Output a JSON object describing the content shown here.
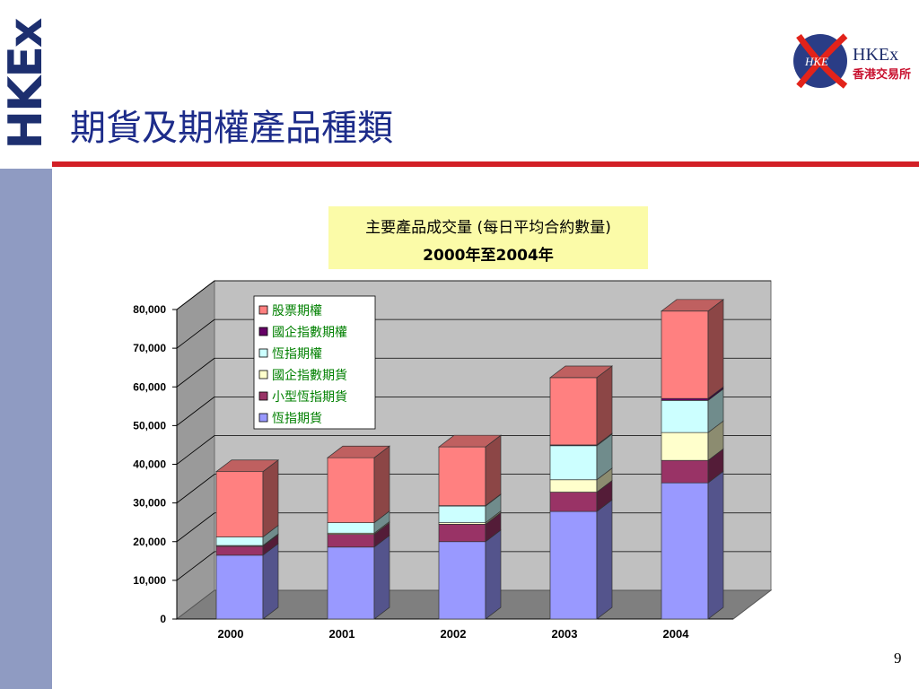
{
  "slide": {
    "title": "期貨及期權產品種類",
    "page_number": "9",
    "side_logo_text": "HKEx",
    "brand": {
      "emblem": "HKE",
      "name": "HKEx",
      "name_zh": "香港交易所"
    }
  },
  "colors": {
    "side_band": "#8f9bc2",
    "title_rule": "#d21f26",
    "title_text": "#1d2c8a",
    "legend_text": "#008000",
    "chart_title_bg": "#fbfba8",
    "plot_back": "#c0c0c0"
  },
  "chart_data": {
    "type": "bar",
    "stacked": true,
    "three_d": true,
    "title": "主要產品成交量 (每日平均合約數量)",
    "subtitle": "2000年至2004年",
    "categories": [
      "2000",
      "2001",
      "2002",
      "2003",
      "2004"
    ],
    "ylim": [
      0,
      80000
    ],
    "yticks": [
      "0",
      "10,000",
      "20,000",
      "30,000",
      "40,000",
      "50,000",
      "60,000",
      "70,000",
      "80,000"
    ],
    "grid": true,
    "legend_position": "top-left",
    "series": [
      {
        "name": "恆指期貨",
        "color": "#9999ff",
        "values": [
          16500,
          18600,
          20000,
          27800,
          35200
        ]
      },
      {
        "name": "小型恆指期貨",
        "color": "#993366",
        "values": [
          2300,
          3300,
          4500,
          5000,
          5800
        ]
      },
      {
        "name": "國企指數期貨",
        "color": "#ffffcc",
        "values": [
          200,
          300,
          400,
          3200,
          7200
        ]
      },
      {
        "name": "恆指期權",
        "color": "#ccffff",
        "values": [
          2200,
          2700,
          4300,
          8800,
          8300
        ]
      },
      {
        "name": "國企指數期權",
        "color": "#660066",
        "values": [
          0,
          0,
          100,
          200,
          500
        ]
      },
      {
        "name": "股票期權",
        "color": "#ff8080",
        "values": [
          16900,
          16800,
          15200,
          17400,
          22600
        ]
      }
    ]
  }
}
